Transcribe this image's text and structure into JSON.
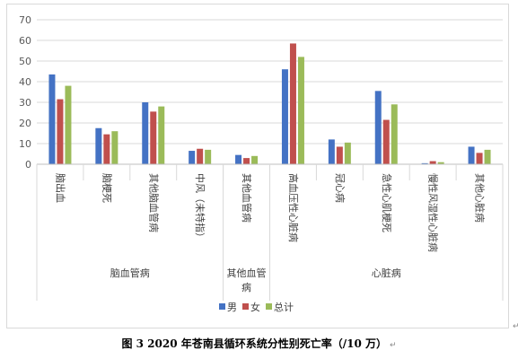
{
  "chart_data": {
    "type": "bar",
    "categories": [
      "脑出血",
      "脑梗死",
      "其他脑血管病",
      "中风（未特指）",
      "其他血管病",
      "高血压性心脏病",
      "冠心病",
      "急性心肌梗死",
      "慢性风湿性心脏病",
      "其他心脏病"
    ],
    "groups": [
      {
        "label": "脑血管病",
        "from": 0,
        "to": 3
      },
      {
        "label": "其他血管病",
        "from": 4,
        "to": 4
      },
      {
        "label": "心脏病",
        "from": 5,
        "to": 9
      }
    ],
    "series": [
      {
        "name": "男",
        "color": "#4472C4",
        "values": [
          43.5,
          17.5,
          30,
          6.5,
          4.5,
          46,
          12,
          35.5,
          0.5,
          8.5
        ]
      },
      {
        "name": "女",
        "color": "#C0504D",
        "values": [
          31.5,
          14.5,
          25.5,
          7.5,
          3,
          58.5,
          8.5,
          21.5,
          1.5,
          5.5
        ]
      },
      {
        "name": "总计",
        "color": "#9BBB59",
        "values": [
          38,
          16,
          28,
          7,
          4,
          52,
          10.5,
          29,
          1,
          7
        ]
      }
    ],
    "ylim": [
      0,
      70
    ],
    "yticks": [
      0,
      10,
      20,
      30,
      40,
      50,
      60,
      70
    ],
    "grid": true,
    "legend": "bottom"
  },
  "caption": "图 3  2020 年苍南县循环系统分性别死亡率（/10 万）",
  "return_mark": "↵"
}
